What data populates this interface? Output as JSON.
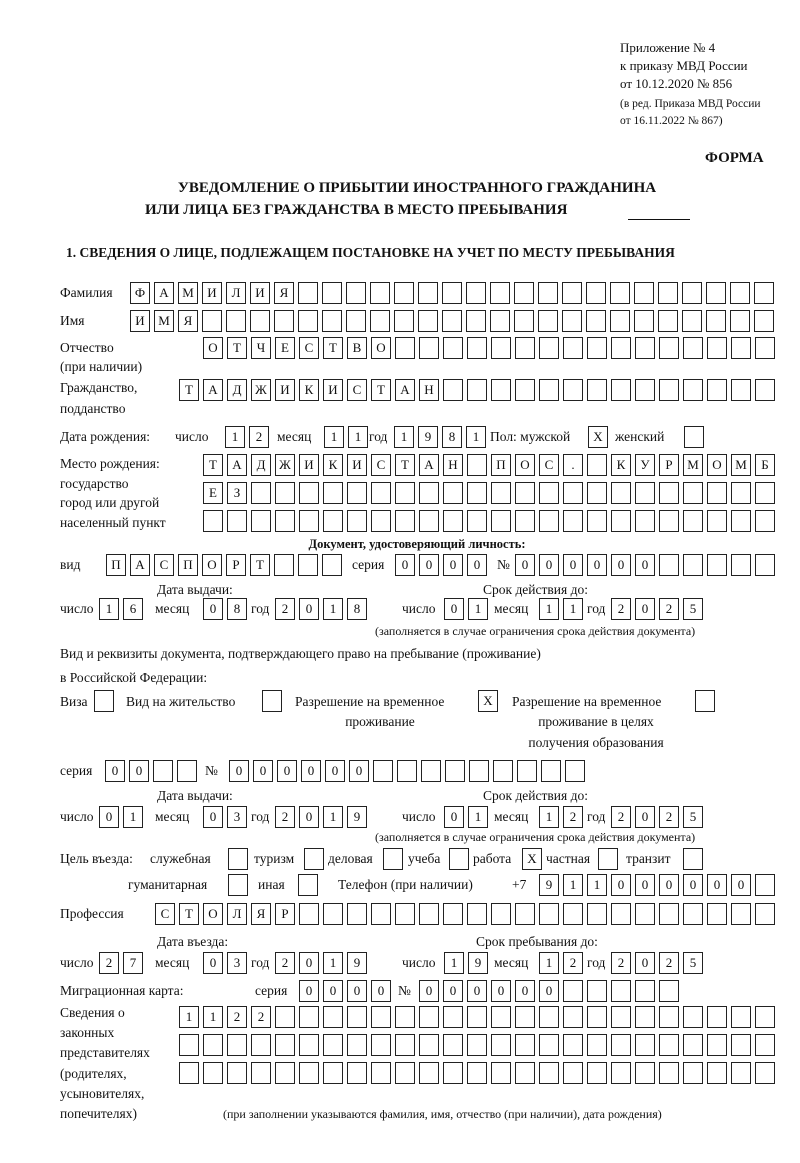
{
  "header": {
    "appendix": [
      "Приложение № 4",
      "к приказу МВД России",
      "от 10.12.2020 № 856"
    ],
    "edition": [
      "(в ред. Приказа МВД России",
      "от 16.11.2022 № 867)"
    ],
    "form_label": "ФОРМА",
    "title": [
      "УВЕДОМЛЕНИЕ О ПРИБЫТИИ ИНОСТРАННОГО ГРАЖДАНИНА",
      "ИЛИ ЛИЦА БЕЗ ГРАЖДАНСТВА В МЕСТО ПРЕБЫВАНИЯ"
    ],
    "section1": "1. СВЕДЕНИЯ О ЛИЦЕ, ПОДЛЕЖАЩЕМ ПОСТАНОВКЕ НА УЧЕТ ПО МЕСТУ ПРЕБЫВАНИЯ"
  },
  "person": {
    "surname": {
      "label": "Фамилия",
      "value": "ФАМИЛИЯ"
    },
    "name": {
      "label": "Имя",
      "value": "ИМЯ"
    },
    "patronymic": {
      "label": [
        "Отчество",
        "(при наличии)"
      ],
      "value": "ОТЧЕСТВО"
    },
    "citizenship": {
      "label": [
        "Гражданство,",
        "подданство"
      ],
      "value": "ТАДЖИКИСТАН"
    },
    "birth_date": {
      "label": "Дата рождения:",
      "day_label": "число",
      "month_label": "месяц",
      "year_label": "год",
      "day": "12",
      "month": "11",
      "year": "1981"
    },
    "sex": {
      "label_male": "Пол: мужской",
      "label_female": "женский",
      "male": "X",
      "female": ""
    },
    "birthplace": {
      "label": [
        "Место рождения:",
        "государство",
        "город или другой",
        "населенный пункт"
      ],
      "lines": [
        "ТАДЖИКИСТАН ПОС. КУРМОМБ",
        "ЕЗ",
        ""
      ]
    }
  },
  "identity_doc": {
    "heading": "Документ, удостоверяющий личность:",
    "type_label": "вид",
    "type": "ПАСПОРТ",
    "series_label": "серия",
    "series": "0000",
    "number_label": "№",
    "number": "000000",
    "issue_label": "Дата выдачи:",
    "expiry_label": "Срок действия до:",
    "day_label": "число",
    "month_label": "месяц",
    "year_label": "год",
    "issue": {
      "day": "16",
      "month": "08",
      "year": "2018"
    },
    "expiry": {
      "day": "01",
      "month": "11",
      "year": "2025"
    },
    "note": "(заполняется в случае ограничения срока действия документа)"
  },
  "stay_doc": {
    "heading": [
      "Вид и реквизиты документа, подтверждающего право на пребывание (проживание)",
      "в Российской Федерации:"
    ],
    "options": [
      {
        "label": [
          "Виза"
        ],
        "checked": ""
      },
      {
        "label": [
          "Вид на жительство"
        ],
        "checked": ""
      },
      {
        "label": [
          "Разрешение на временное",
          "проживание"
        ],
        "checked": "X"
      },
      {
        "label": [
          "Разрешение на временное",
          "проживание в целях",
          "получения образования"
        ],
        "checked": ""
      }
    ],
    "series_label": "серия",
    "series": "00",
    "number_label": "№",
    "number": "000000",
    "issue_label": "Дата выдачи:",
    "expiry_label": "Срок действия до:",
    "day_label": "число",
    "month_label": "месяц",
    "year_label": "год",
    "issue": {
      "day": "01",
      "month": "03",
      "year": "2019"
    },
    "expiry": {
      "day": "01",
      "month": "12",
      "year": "2025"
    },
    "note": "(заполняется в случае ограничения срока действия документа)"
  },
  "purpose": {
    "label": "Цель въезда:",
    "options": [
      {
        "label": "служебная",
        "checked": ""
      },
      {
        "label": "туризм",
        "checked": ""
      },
      {
        "label": "деловая",
        "checked": ""
      },
      {
        "label": "учеба",
        "checked": ""
      },
      {
        "label": "работа",
        "checked": "X"
      },
      {
        "label": "частная",
        "checked": ""
      },
      {
        "label": "транзит",
        "checked": ""
      },
      {
        "label": "гуманитарная",
        "checked": ""
      },
      {
        "label": "иная",
        "checked": ""
      }
    ]
  },
  "phone": {
    "label": "Телефон (при наличии)",
    "prefix": "+7",
    "value": "911000000"
  },
  "profession": {
    "label": "Профессия",
    "value": "СТОЛЯР"
  },
  "entry": {
    "entry_label": "Дата въезда:",
    "stay_until_label": "Срок пребывания до:",
    "day_label": "число",
    "month_label": "месяц",
    "year_label": "год",
    "entry": {
      "day": "27",
      "month": "03",
      "year": "2019"
    },
    "stay_until": {
      "day": "19",
      "month": "12",
      "year": "2025"
    }
  },
  "migration_card": {
    "label": "Миграционная карта:",
    "series_label": "серия",
    "series": "0000",
    "number_label": "№",
    "number": "000000"
  },
  "representatives": {
    "label": [
      "Сведения о",
      "законных",
      "представителях",
      "(родителях,",
      "усыновителях,",
      "попечителях)"
    ],
    "lines": [
      "1122",
      "",
      ""
    ],
    "note": "(при заполнении указываются фамилия, имя, отчество (при наличии), дата рождения)"
  }
}
